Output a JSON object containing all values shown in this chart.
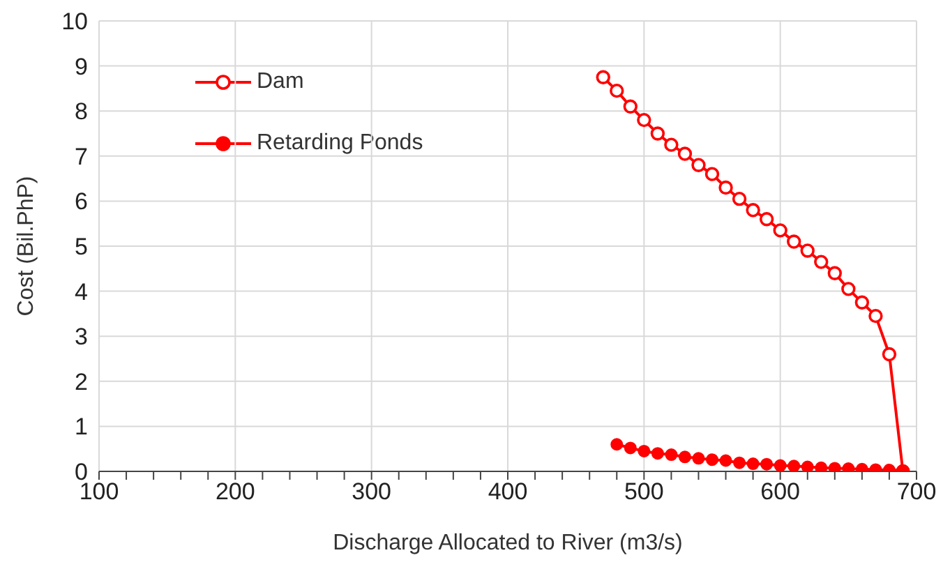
{
  "chart_data": {
    "type": "line",
    "xlabel": "Discharge Allocated to River (m3/s)",
    "ylabel": "Cost (Bil.PhP)",
    "xlim": [
      100,
      700
    ],
    "xticks": [
      100,
      {
        "value": 120,
        "label": null
      },
      {
        "value": 140,
        "label": null
      },
      {
        "value": 160,
        "label": null
      },
      {
        "value": 180,
        "label": null
      },
      200,
      {
        "value": 220,
        "label": null
      },
      {
        "value": 240,
        "label": null
      },
      {
        "value": 260,
        "label": null
      },
      {
        "value": 280,
        "label": null
      },
      300,
      {
        "value": 320,
        "label": null
      },
      {
        "value": 340,
        "label": null
      },
      {
        "value": 360,
        "label": null
      },
      {
        "value": 380,
        "label": null
      },
      400,
      {
        "value": 420,
        "label": null
      },
      {
        "value": 440,
        "label": null
      },
      {
        "value": 460,
        "label": null
      },
      {
        "value": 480,
        "label": null
      },
      500,
      {
        "value": 520,
        "label": null
      },
      {
        "value": 540,
        "label": null
      },
      {
        "value": 560,
        "label": null
      },
      {
        "value": 580,
        "label": null
      },
      600,
      {
        "value": 620,
        "label": null
      },
      {
        "value": 640,
        "label": null
      },
      {
        "value": 660,
        "label": null
      },
      {
        "value": 680,
        "label": null
      },
      700
    ],
    "ylim": [
      0,
      10
    ],
    "yticks": [
      0,
      1,
      2,
      3,
      4,
      5,
      6,
      7,
      8,
      9,
      10
    ],
    "grid": true,
    "legend": "top left",
    "marker": "circle",
    "line_style": "solid",
    "series": [
      {
        "name": "Dam",
        "color": "#ff0000",
        "x": [
          470,
          480,
          490,
          500,
          510,
          520,
          530,
          540,
          550,
          560,
          570,
          580,
          590,
          600,
          610,
          620,
          630,
          640,
          650,
          660,
          670,
          680,
          690
        ],
        "values": [
          8.75,
          8.45,
          8.1,
          7.8,
          7.5,
          7.25,
          7.05,
          6.8,
          6.6,
          6.3,
          6.05,
          5.8,
          5.6,
          5.35,
          5.1,
          4.9,
          4.65,
          4.4,
          4.05,
          3.75,
          3.45,
          2.6,
          0
        ]
      },
      {
        "name": "Retarding Ponds",
        "color": "#ff0000",
        "x": [
          480,
          490,
          500,
          510,
          520,
          530,
          540,
          550,
          560,
          570,
          580,
          590,
          600,
          610,
          620,
          630,
          640,
          650,
          660,
          670,
          680,
          690
        ],
        "values": [
          0.6,
          0.52,
          0.45,
          0.4,
          0.37,
          0.32,
          0.29,
          0.26,
          0.24,
          0.19,
          0.17,
          0.16,
          0.13,
          0.12,
          0.1,
          0.08,
          0.07,
          0.06,
          0.05,
          0.04,
          0.03,
          0.02
        ]
      }
    ]
  }
}
